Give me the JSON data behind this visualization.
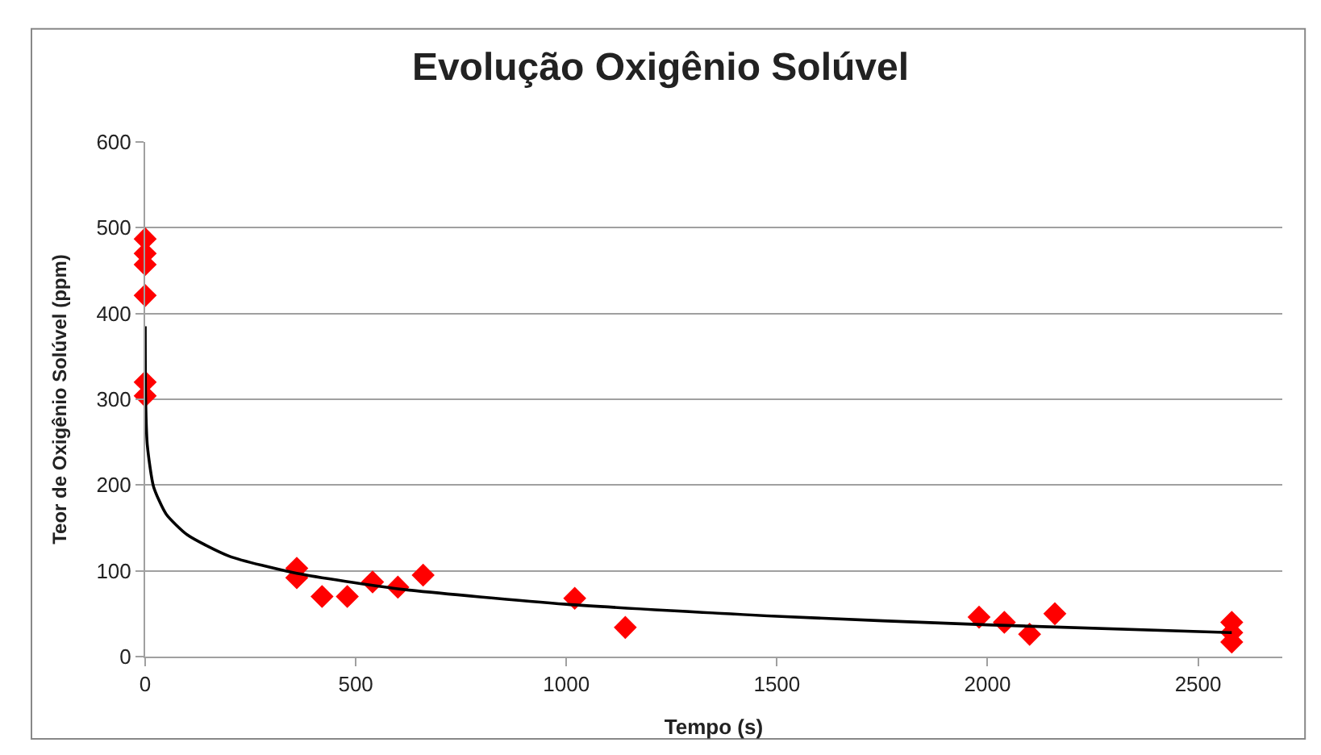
{
  "chart_data": {
    "type": "scatter",
    "title": "Evolução Oxigênio Solúvel",
    "xlabel": "Tempo (s)",
    "ylabel": "Teor de Oxigênio Solúvel (ppm)",
    "xlim": [
      0,
      2700
    ],
    "xticks": [
      0,
      500,
      1000,
      1500,
      2000,
      2500
    ],
    "ylim": [
      0,
      600
    ],
    "yticks": [
      0,
      100,
      200,
      300,
      400,
      500,
      600
    ],
    "grid": "y",
    "legend": false,
    "marker": "diamond",
    "series": [
      {
        "color": "#ff0000",
        "x": [
          0,
          0,
          0,
          0,
          0,
          0,
          360,
          360,
          420,
          480,
          540,
          600,
          660,
          1020,
          1140,
          1980,
          2040,
          2100,
          2160,
          2580,
          2580,
          2580
        ],
        "values": [
          487,
          470,
          457,
          421,
          320,
          304,
          103,
          92,
          70,
          70,
          87,
          81,
          95,
          68,
          34,
          46,
          40,
          26,
          50,
          40,
          28,
          17
        ]
      },
      {
        "type": "line",
        "marker": "none",
        "color": "#000000",
        "x": [
          0.1,
          1,
          5,
          20,
          50,
          100,
          200,
          360,
          600,
          1000,
          1500,
          2000,
          2580
        ],
        "values": [
          385,
          303,
          247,
          198,
          166,
          142,
          117,
          97,
          79,
          61,
          47,
          37,
          28
        ]
      }
    ]
  }
}
